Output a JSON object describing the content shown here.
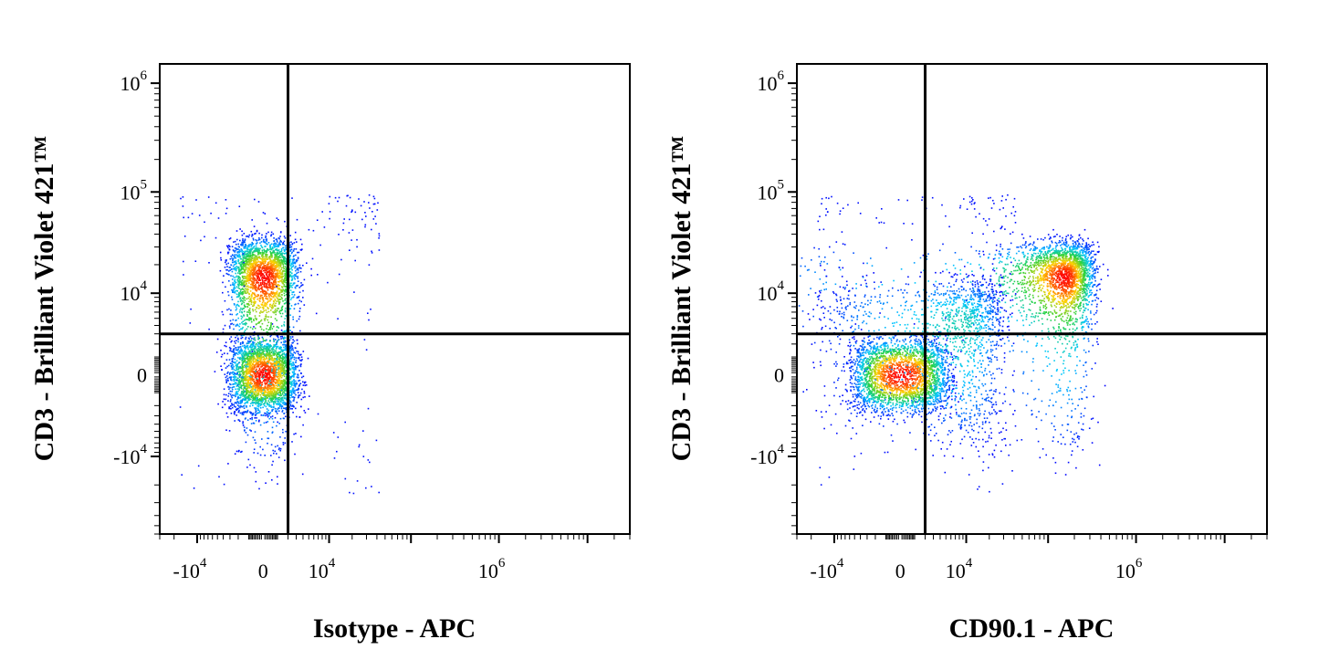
{
  "chart_data": [
    {
      "type": "scatter",
      "subtype": "flow-cytometry-density-dot-plot",
      "xlabel": "Isotype - APC",
      "ylabel": "CD3 - Brilliant Violet 421™",
      "x_scale": "biexponential",
      "y_scale": "biexponential",
      "xlim": [
        -30000,
        30000000
      ],
      "ylim": [
        -60000,
        1500000
      ],
      "x_ticks": [
        {
          "value": -10000,
          "base": "-10",
          "exp": "4"
        },
        {
          "value": 0,
          "base": "0",
          "exp": ""
        },
        {
          "value": 10000,
          "base": "10",
          "exp": "4"
        },
        {
          "value": 1000000,
          "base": "10",
          "exp": "6"
        }
      ],
      "y_ticks": [
        {
          "value": -10000,
          "base": "-10",
          "exp": "4"
        },
        {
          "value": 0,
          "base": "0",
          "exp": ""
        },
        {
          "value": 10000,
          "base": "10",
          "exp": "4"
        },
        {
          "value": 100000,
          "base": "10",
          "exp": "5"
        },
        {
          "value": 1000000,
          "base": "10",
          "exp": "6"
        }
      ],
      "quadrant_gate": {
        "x": 2000,
        "y": 3000
      },
      "populations": [
        {
          "x_center": 0,
          "y_center": 0,
          "x_spread": 1500,
          "y_spread": 1200,
          "density": "high",
          "color_peak": "red"
        },
        {
          "x_center": 0,
          "y_center": 15000,
          "x_spread": 1500,
          "y_spread": 10000,
          "density": "high",
          "color_peak": "orange"
        }
      ],
      "colors": {
        "low": "#0000ff",
        "mid": "#00c8ff",
        "mid2": "#28d23c",
        "high": "#ffd200",
        "peak": "#ff0000"
      }
    },
    {
      "type": "scatter",
      "subtype": "flow-cytometry-density-dot-plot",
      "xlabel": "CD90.1 - APC",
      "ylabel": "CD3 - Brilliant Violet 421™",
      "x_scale": "biexponential",
      "y_scale": "biexponential",
      "xlim": [
        -30000,
        30000000
      ],
      "ylim": [
        -60000,
        1500000
      ],
      "x_ticks": [
        {
          "value": -10000,
          "base": "-10",
          "exp": "4"
        },
        {
          "value": 0,
          "base": "0",
          "exp": ""
        },
        {
          "value": 10000,
          "base": "10",
          "exp": "4"
        },
        {
          "value": 1000000,
          "base": "10",
          "exp": "6"
        }
      ],
      "y_ticks": [
        {
          "value": -10000,
          "base": "-10",
          "exp": "4"
        },
        {
          "value": 0,
          "base": "0",
          "exp": ""
        },
        {
          "value": 10000,
          "base": "10",
          "exp": "4"
        },
        {
          "value": 100000,
          "base": "10",
          "exp": "5"
        },
        {
          "value": 1000000,
          "base": "10",
          "exp": "6"
        }
      ],
      "quadrant_gate": {
        "x": 2000,
        "y": 3000
      },
      "populations": [
        {
          "x_center": 0,
          "y_center": 0,
          "x_spread": 2500,
          "y_spread": 1200,
          "density": "high",
          "color_peak": "red"
        },
        {
          "x_center": 150000,
          "y_center": 15000,
          "x_spread": 90000,
          "y_spread": 9000,
          "density": "high",
          "color_peak": "red"
        },
        {
          "x_center": 8000,
          "y_center": 4000,
          "x_spread": 10000,
          "y_spread": 5000,
          "density": "low",
          "color_peak": "blue"
        }
      ],
      "colors": {
        "low": "#0000ff",
        "mid": "#00c8ff",
        "mid2": "#28d23c",
        "high": "#ffd200",
        "peak": "#ff0000"
      }
    }
  ]
}
